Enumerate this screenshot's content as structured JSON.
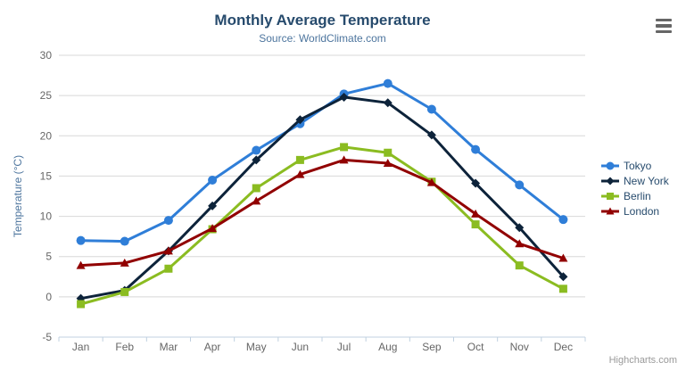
{
  "chart": {
    "credits": "Highcharts.com",
    "menu_icon": "hamburger-menu"
  },
  "colors": {
    "title": "#274b6d",
    "subtitle": "#4d759e",
    "axis_title": "#4d759e",
    "axis_labels": "#666666",
    "gridline": "#d8d8d8",
    "axis_line": "#c0d0e0",
    "credits": "#999999",
    "menu_icon": "#666666",
    "background": "#ffffff"
  },
  "chart_data": {
    "type": "line",
    "title": "Monthly Average Temperature",
    "subtitle": "Source: WorldClimate.com",
    "xlabel": "",
    "ylabel": "Temperature (°C)",
    "categories": [
      "Jan",
      "Feb",
      "Mar",
      "Apr",
      "May",
      "Jun",
      "Jul",
      "Aug",
      "Sep",
      "Oct",
      "Nov",
      "Dec"
    ],
    "ylim": [
      -5,
      30
    ],
    "ytick_step": 5,
    "yticks": [
      -5,
      0,
      5,
      10,
      15,
      20,
      25,
      30
    ],
    "grid": true,
    "legend_position": "right",
    "series": [
      {
        "name": "Tokyo",
        "color": "#2f7ed8",
        "marker": "circle",
        "values": [
          7.0,
          6.9,
          9.5,
          14.5,
          18.2,
          21.5,
          25.2,
          26.5,
          23.3,
          18.3,
          13.9,
          9.6
        ]
      },
      {
        "name": "New York",
        "color": "#0d233a",
        "marker": "diamond",
        "values": [
          -0.2,
          0.8,
          5.7,
          11.3,
          17.0,
          22.0,
          24.8,
          24.1,
          20.1,
          14.1,
          8.6,
          2.5
        ]
      },
      {
        "name": "Berlin",
        "color": "#8bbc21",
        "marker": "square",
        "values": [
          -0.9,
          0.6,
          3.5,
          8.4,
          13.5,
          17.0,
          18.6,
          17.9,
          14.3,
          9.0,
          3.9,
          1.0
        ]
      },
      {
        "name": "London",
        "color": "#910000",
        "marker": "triangle",
        "values": [
          3.9,
          4.2,
          5.7,
          8.5,
          11.9,
          15.2,
          17.0,
          16.6,
          14.2,
          10.3,
          6.6,
          4.8
        ]
      }
    ]
  }
}
